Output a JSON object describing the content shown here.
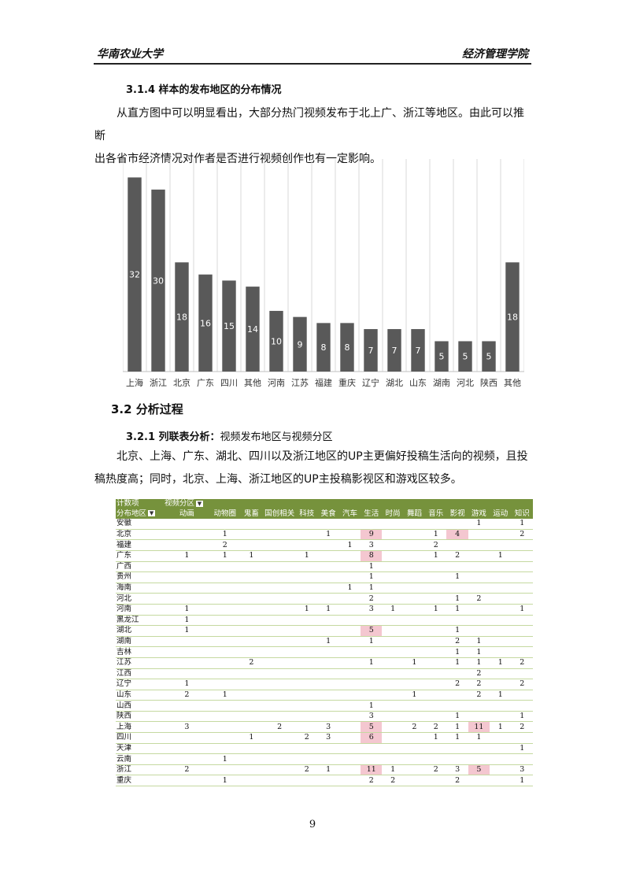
{
  "header": {
    "left": "华南农业大学",
    "right": "经济管理学院"
  },
  "section_314": {
    "heading": "3.1.4 样本的发布地区的分布情况",
    "para_line1": "从直方图中可以明显看出，大部分热门视频发布于北上广、浙江等地区。由此可以推断",
    "para_line2": "出各省市经济情况对作者是否进行视频创作也有一定影响。"
  },
  "chart_data": {
    "type": "bar",
    "categories": [
      "上海",
      "浙江",
      "北京",
      "广东",
      "四川",
      "其他",
      "河南",
      "江苏",
      "福建",
      "重庆",
      "辽宁",
      "湖北",
      "山东",
      "湖南",
      "河北",
      "陕西",
      "其他"
    ],
    "category_labels_display": [
      "上海",
      "浙江",
      "北京",
      "广东",
      "四川",
      "其他",
      "河南",
      "江苏",
      "福建",
      "重庆",
      "辽宁",
      "湖北",
      "山东",
      "湖南",
      "河北",
      "陕西",
      "其他"
    ],
    "values": [
      32,
      30,
      18,
      16,
      15,
      14,
      10,
      9,
      8,
      8,
      7,
      7,
      7,
      5,
      5,
      5,
      18
    ],
    "data_labels_display": [
      "32",
      "30",
      "18",
      "16",
      "15",
      "14",
      "10",
      "9",
      "8",
      "8",
      "7",
      "7",
      "7",
      "5",
      "5",
      "5",
      "18"
    ],
    "ylim": [
      0,
      34
    ],
    "grid": "vertical",
    "bar_color": "#595959",
    "label_color": "#ffffff"
  },
  "section_32": {
    "heading": "3.2 分析过程"
  },
  "section_321": {
    "heading_bold": "3.2.1 列联表分析：",
    "heading_rest": "视频发布地区与视频分区",
    "para_line1": "北京、上海、广东、湖北、四川以及浙江地区的UP主更偏好投稿生活向的视频，且投",
    "para_line2": "稿热度高；同时，北京、上海、浙江地区的UP主投稿影视区和游戏区较多。"
  },
  "pivot": {
    "count_label": "计数项",
    "col_field": "视频分区",
    "row_field": "分布地区",
    "filter_icon": "filter-dropdown-icon",
    "columns": [
      "动画",
      "动物圈",
      "鬼畜",
      "国创相关",
      "科技",
      "美食",
      "汽车",
      "生活",
      "时尚",
      "舞蹈",
      "音乐",
      "影视",
      "游戏",
      "运动",
      "知识"
    ],
    "rows": [
      {
        "name": "安徽",
        "cells": [
          "",
          "",
          "",
          "",
          "",
          "",
          "",
          "",
          "",
          "",
          "",
          "",
          "1",
          "",
          "1"
        ]
      },
      {
        "name": "北京",
        "cells": [
          "",
          "1",
          "",
          "",
          "",
          "1",
          "",
          "9",
          "",
          "",
          "1",
          "4",
          "",
          "",
          "2"
        ]
      },
      {
        "name": "福建",
        "cells": [
          "",
          "2",
          "",
          "",
          "",
          "",
          "1",
          "3",
          "",
          "",
          "2",
          "",
          "",
          "",
          ""
        ]
      },
      {
        "name": "广东",
        "cells": [
          "1",
          "1",
          "1",
          "",
          "1",
          "",
          "",
          "8",
          "",
          "",
          "1",
          "2",
          "",
          "1",
          ""
        ]
      },
      {
        "name": "广西",
        "cells": [
          "",
          "",
          "",
          "",
          "",
          "",
          "",
          "1",
          "",
          "",
          "",
          "",
          "",
          "",
          ""
        ]
      },
      {
        "name": "贵州",
        "cells": [
          "",
          "",
          "",
          "",
          "",
          "",
          "",
          "1",
          "",
          "",
          "",
          "1",
          "",
          "",
          ""
        ]
      },
      {
        "name": "海南",
        "cells": [
          "",
          "",
          "",
          "",
          "",
          "",
          "1",
          "1",
          "",
          "",
          "",
          "",
          "",
          "",
          ""
        ]
      },
      {
        "name": "河北",
        "cells": [
          "",
          "",
          "",
          "",
          "",
          "",
          "",
          "2",
          "",
          "",
          "",
          "1",
          "2",
          "",
          ""
        ]
      },
      {
        "name": "河南",
        "cells": [
          "1",
          "",
          "",
          "",
          "1",
          "1",
          "",
          "3",
          "1",
          "",
          "1",
          "1",
          "",
          "",
          "1"
        ]
      },
      {
        "name": "黑龙江",
        "cells": [
          "1",
          "",
          "",
          "",
          "",
          "",
          "",
          "",
          "",
          "",
          "",
          "",
          "",
          "",
          ""
        ]
      },
      {
        "name": "湖北",
        "cells": [
          "1",
          "",
          "",
          "",
          "",
          "",
          "",
          "5",
          "",
          "",
          "",
          "1",
          "",
          "",
          ""
        ]
      },
      {
        "name": "湖南",
        "cells": [
          "",
          "",
          "",
          "",
          "",
          "1",
          "",
          "1",
          "",
          "",
          "",
          "2",
          "1",
          "",
          ""
        ]
      },
      {
        "name": "吉林",
        "cells": [
          "",
          "",
          "",
          "",
          "",
          "",
          "",
          "",
          "",
          "",
          "",
          "1",
          "1",
          "",
          ""
        ]
      },
      {
        "name": "江苏",
        "cells": [
          "",
          "",
          "2",
          "",
          "",
          "",
          "",
          "1",
          "",
          "1",
          "",
          "1",
          "1",
          "1",
          "2"
        ]
      },
      {
        "name": "江西",
        "cells": [
          "",
          "",
          "",
          "",
          "",
          "",
          "",
          "",
          "",
          "",
          "",
          "",
          "2",
          "",
          ""
        ]
      },
      {
        "name": "辽宁",
        "cells": [
          "1",
          "",
          "",
          "",
          "",
          "",
          "",
          "",
          "",
          "",
          "",
          "2",
          "2",
          "",
          "2"
        ]
      },
      {
        "name": "山东",
        "cells": [
          "2",
          "1",
          "",
          "",
          "",
          "",
          "",
          "",
          "",
          "1",
          "",
          "",
          "2",
          "1",
          ""
        ]
      },
      {
        "name": "山西",
        "cells": [
          "",
          "",
          "",
          "",
          "",
          "",
          "",
          "1",
          "",
          "",
          "",
          "",
          "",
          "",
          ""
        ]
      },
      {
        "name": "陕西",
        "cells": [
          "",
          "",
          "",
          "",
          "",
          "",
          "",
          "3",
          "",
          "",
          "",
          "1",
          "",
          "",
          "1"
        ]
      },
      {
        "name": "上海",
        "cells": [
          "3",
          "",
          "",
          "2",
          "",
          "3",
          "",
          "5",
          "",
          "2",
          "2",
          "1",
          "11",
          "1",
          "2"
        ]
      },
      {
        "name": "四川",
        "cells": [
          "",
          "",
          "1",
          "",
          "2",
          "3",
          "",
          "6",
          "",
          "",
          "1",
          "1",
          "1",
          "",
          ""
        ]
      },
      {
        "name": "天津",
        "cells": [
          "",
          "",
          "",
          "",
          "",
          "",
          "",
          "",
          "",
          "",
          "",
          "",
          "",
          "",
          "1"
        ]
      },
      {
        "name": "云南",
        "cells": [
          "",
          "1",
          "",
          "",
          "",
          "",
          "",
          "",
          "",
          "",
          "",
          "",
          "",
          "",
          ""
        ]
      },
      {
        "name": "浙江",
        "cells": [
          "2",
          "",
          "",
          "",
          "2",
          "1",
          "",
          "11",
          "1",
          "",
          "2",
          "3",
          "5",
          "",
          "3"
        ]
      },
      {
        "name": "重庆",
        "cells": [
          "",
          "1",
          "",
          "",
          "",
          "",
          "",
          "2",
          "2",
          "",
          "",
          "2",
          "",
          "",
          "1"
        ]
      }
    ],
    "highlight_color": "#f4c7d0",
    "header_color": "#76923c"
  },
  "page_number": "9"
}
